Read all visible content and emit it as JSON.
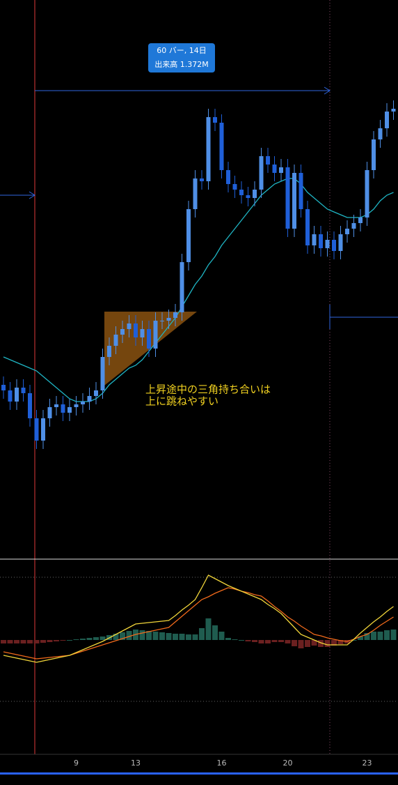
{
  "chart_data": {
    "type": "candlestick",
    "measure": {
      "line1": "60 バー, 14日",
      "line2": "出来高 1.372M"
    },
    "annotation": [
      "上昇途中の三角持ち合いは",
      "上に跳ねやすい"
    ],
    "categories": [
      null,
      null,
      null,
      null,
      null,
      null,
      null,
      null,
      null,
      null,
      null,
      "9",
      null,
      null,
      null,
      null,
      null,
      null,
      null,
      null,
      "13",
      null,
      null,
      null,
      null,
      null,
      null,
      null,
      null,
      null,
      null,
      null,
      null,
      "16",
      null,
      null,
      null,
      null,
      null,
      null,
      null,
      null,
      null,
      "20",
      null,
      null,
      null,
      null,
      null,
      null,
      null,
      null,
      null,
      null,
      null,
      "23",
      null,
      null,
      null,
      null
    ],
    "open": [
      62,
      60,
      56,
      61,
      59,
      50,
      42,
      50,
      54,
      55,
      52,
      54,
      55,
      56,
      58,
      60,
      72,
      76,
      80,
      82,
      84,
      79,
      82,
      75,
      85,
      85,
      86,
      88,
      106,
      125,
      136,
      135,
      158,
      156,
      139,
      134,
      132,
      130,
      129,
      132,
      144,
      141,
      138,
      140,
      118,
      138,
      125,
      112,
      116,
      111,
      114,
      110,
      116,
      118,
      120,
      122,
      139,
      150,
      154,
      160
    ],
    "high": [
      65,
      63,
      64,
      64,
      62,
      53,
      53,
      57,
      58,
      58,
      57,
      58,
      59,
      61,
      63,
      75,
      79,
      83,
      85,
      87,
      87,
      85,
      85,
      88,
      88,
      89,
      91,
      109,
      128,
      139,
      139,
      161,
      161,
      159,
      142,
      137,
      135,
      133,
      135,
      147,
      147,
      144,
      143,
      143,
      141,
      141,
      128,
      119,
      119,
      117,
      117,
      119,
      121,
      123,
      125,
      142,
      153,
      157,
      163,
      164
    ],
    "low": [
      57,
      53,
      53,
      56,
      47,
      39,
      39,
      47,
      51,
      49,
      49,
      51,
      52,
      53,
      55,
      57,
      69,
      73,
      77,
      79,
      76,
      76,
      72,
      72,
      82,
      82,
      83,
      85,
      103,
      122,
      132,
      132,
      153,
      136,
      131,
      129,
      127,
      126,
      126,
      129,
      138,
      135,
      135,
      115,
      115,
      122,
      109,
      109,
      108,
      108,
      107,
      107,
      113,
      115,
      117,
      119,
      136,
      147,
      151,
      157
    ],
    "close": [
      60,
      56,
      61,
      59,
      50,
      42,
      50,
      54,
      55,
      52,
      54,
      55,
      56,
      58,
      60,
      72,
      76,
      80,
      82,
      84,
      79,
      82,
      75,
      85,
      85,
      86,
      88,
      106,
      125,
      136,
      135,
      158,
      156,
      139,
      134,
      132,
      130,
      129,
      132,
      144,
      141,
      138,
      140,
      118,
      138,
      125,
      112,
      116,
      111,
      114,
      110,
      116,
      118,
      120,
      122,
      139,
      150,
      154,
      160,
      161
    ],
    "up_color": "#4f8fe6",
    "down_color": "#1f5fd8",
    "ylim": [
      0,
      200
    ],
    "moving_average": {
      "color": "#1fb5c4",
      "values": [
        72,
        71,
        70,
        69,
        68,
        67,
        65,
        63,
        61,
        59,
        57,
        56,
        56,
        56,
        57,
        59,
        62,
        64,
        66,
        68,
        69,
        71,
        74,
        77,
        80,
        83,
        86,
        90,
        94,
        98,
        101,
        105,
        108,
        112,
        115,
        118,
        121,
        124,
        127,
        130,
        132,
        134,
        135,
        136,
        136,
        134,
        131,
        129,
        127,
        125,
        124,
        123,
        122,
        122,
        122,
        123,
        125,
        128,
        130,
        131
      ]
    },
    "macd_ylim": [
      -90,
      90
    ],
    "macd": {
      "color": "#f2d63a",
      "values": [
        -22,
        -24,
        -26,
        -28,
        -30,
        -32,
        -30,
        -28,
        -26,
        -24,
        -22,
        -18,
        -14,
        -10,
        -6,
        -2,
        3,
        8,
        13,
        18,
        23,
        24,
        25,
        26,
        27,
        28,
        35,
        43,
        50,
        58,
        75,
        93,
        88,
        83,
        78,
        74,
        70,
        66,
        62,
        58,
        51,
        45,
        38,
        28,
        18,
        8,
        4,
        0,
        -4,
        -7,
        -7,
        -7,
        -7,
        1,
        10,
        18,
        26,
        33,
        41,
        48
      ]
    },
    "signal": {
      "color": "#f26a1b",
      "values": [
        -17,
        -19,
        -21,
        -23,
        -25,
        -27,
        -26,
        -25,
        -24,
        -23,
        -22,
        -19,
        -16,
        -13,
        -10,
        -7,
        -4,
        -1,
        2,
        5,
        8,
        10,
        12,
        14,
        16,
        18,
        26,
        34,
        42,
        50,
        58,
        62,
        67,
        71,
        75,
        73,
        70,
        68,
        65,
        63,
        56,
        48,
        41,
        33,
        27,
        20,
        14,
        8,
        6,
        3,
        1,
        -1,
        -2,
        1,
        5,
        8,
        14,
        21,
        27,
        33
      ]
    },
    "histogram": {
      "up_color": "#1f5c4f",
      "down_color": "#6b2020",
      "values": [
        -5,
        -5,
        -5,
        -5,
        -5,
        -5,
        -4,
        -3,
        -2,
        -1,
        0,
        1,
        2,
        3,
        4,
        5,
        7,
        9,
        11,
        13,
        15,
        14,
        13,
        12,
        11,
        10,
        9,
        9,
        8,
        8,
        17,
        31,
        21,
        12,
        3,
        1,
        0,
        -2,
        -3,
        -5,
        -5,
        -3,
        -3,
        -5,
        -9,
        -12,
        -10,
        -8,
        -10,
        -10,
        -8,
        -6,
        -5,
        0,
        5,
        10,
        12,
        12,
        14,
        15
      ]
    }
  }
}
